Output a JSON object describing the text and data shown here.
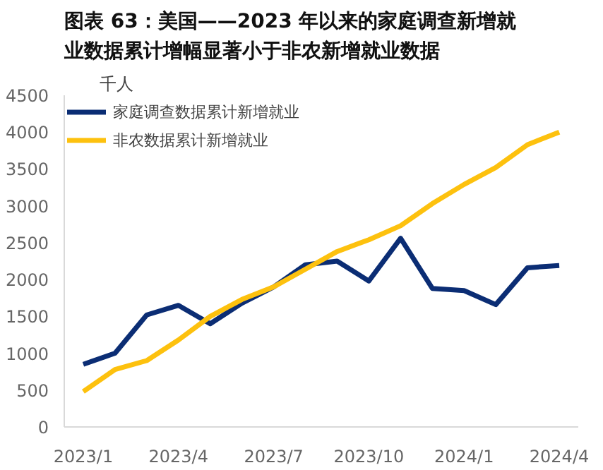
{
  "chart_data": {
    "type": "line",
    "title": "图表 63：美国——2023 年以来的家庭调查新增就业数据累计增幅显著小于非农新增就业数据",
    "ylabel": "千人",
    "categories": [
      "2023/1",
      null,
      null,
      "2023/4",
      null,
      null,
      "2023/7",
      null,
      null,
      "2023/10",
      null,
      null,
      "2024/1",
      null,
      null,
      "2024/4"
    ],
    "series": [
      {
        "name": "家庭调查数据累计新增就业",
        "color": "#0b2d74",
        "values": [
          850,
          1000,
          1520,
          1650,
          1400,
          1680,
          1900,
          2200,
          2250,
          1980,
          2560,
          1880,
          1850,
          1660,
          2160,
          2190
        ]
      },
      {
        "name": "非农数据累计新增就业",
        "color": "#fdc10e",
        "values": [
          480,
          780,
          900,
          1180,
          1500,
          1730,
          1900,
          2140,
          2380,
          2540,
          2730,
          3030,
          3290,
          3520,
          3830,
          4000
        ]
      }
    ],
    "ylim": [
      0,
      4500
    ],
    "yticks": [
      0,
      500,
      1000,
      1500,
      2000,
      2500,
      3000,
      3500,
      4000,
      4500
    ],
    "grid": false,
    "legend": "top left",
    "marker": "none",
    "line_style": "solid"
  }
}
